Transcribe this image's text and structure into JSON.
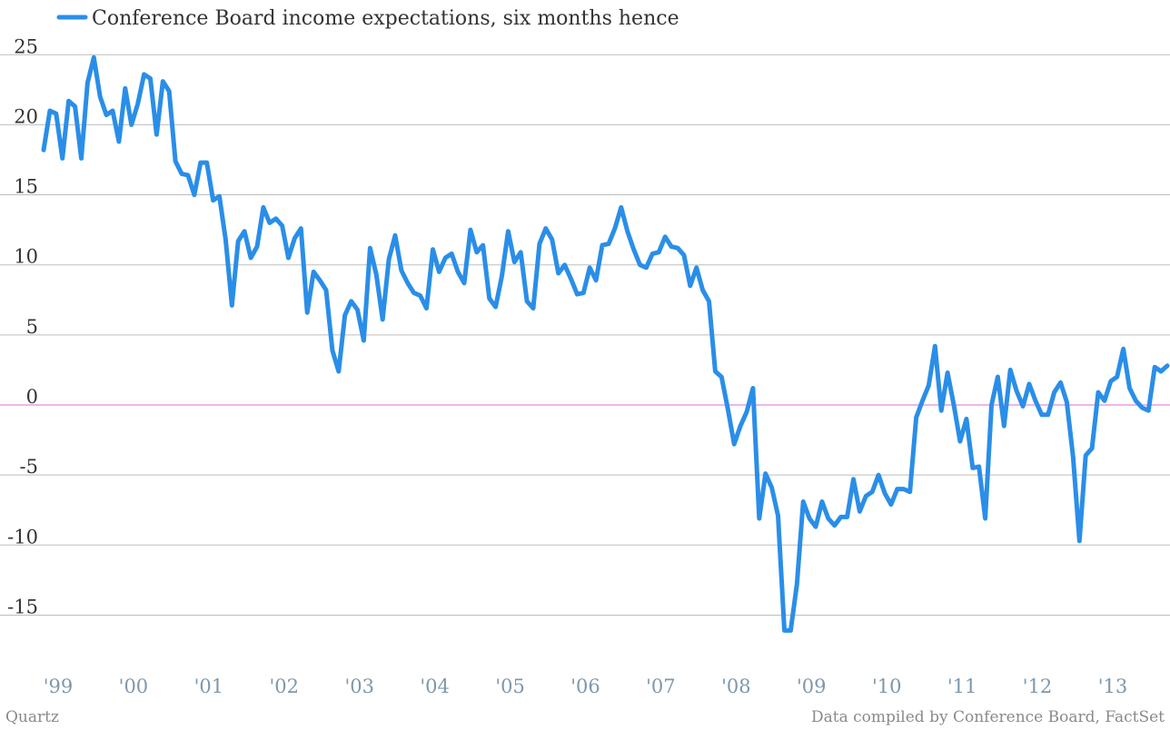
{
  "chart_data": {
    "type": "line",
    "title": "",
    "xlabel": "",
    "ylabel": "",
    "ylim": [
      -19,
      25.5
    ],
    "yticks": [
      25,
      20,
      15,
      10,
      5,
      0,
      -5,
      -10,
      -15
    ],
    "ytick_labels": [
      "25",
      "20",
      "15",
      "10",
      "5",
      "0",
      "-5",
      "-10",
      "-15"
    ],
    "xticks": [
      "'99",
      "'00",
      "'01",
      "'02",
      "'03",
      "'04",
      "'05",
      "'06",
      "'07",
      "'08",
      "'09",
      "'10",
      "'11",
      "'12",
      "'13"
    ],
    "grid": true,
    "zero_line_color": "#d96fd6",
    "legend_position": "top-left",
    "series": [
      {
        "name": "Conference Board income expectations, six months hence",
        "color": "#2a8ee8",
        "start": "1999-01",
        "frequency": "monthly",
        "values": [
          18.2,
          21.0,
          20.8,
          17.6,
          21.7,
          21.3,
          17.6,
          23.0,
          24.8,
          22.0,
          20.7,
          21.0,
          18.8,
          22.6,
          20.0,
          21.5,
          23.6,
          23.3,
          19.3,
          23.1,
          22.4,
          17.4,
          16.5,
          16.4,
          15.0,
          17.3,
          17.3,
          14.6,
          14.9,
          11.8,
          7.1,
          11.7,
          12.4,
          10.5,
          11.3,
          14.1,
          13.0,
          13.3,
          12.8,
          10.5,
          11.9,
          12.6,
          6.6,
          9.5,
          8.9,
          8.2,
          3.9,
          2.4,
          6.4,
          7.4,
          6.8,
          4.6,
          11.2,
          9.3,
          6.1,
          10.4,
          12.1,
          9.6,
          8.7,
          8.0,
          7.8,
          6.9,
          11.1,
          9.5,
          10.5,
          10.8,
          9.5,
          8.7,
          12.5,
          10.9,
          11.4,
          7.6,
          7.0,
          9.2,
          12.4,
          10.2,
          10.9,
          7.4,
          6.9,
          11.5,
          12.6,
          11.8,
          9.4,
          10.0,
          9.0,
          7.9,
          8.0,
          9.8,
          8.9,
          11.4,
          11.5,
          12.6,
          14.1,
          12.4,
          11.1,
          10.0,
          9.8,
          10.8,
          10.9,
          12.0,
          11.3,
          11.2,
          10.7,
          8.5,
          9.8,
          8.2,
          7.4,
          2.4,
          2.0,
          -0.3,
          -2.8,
          -1.5,
          -0.5,
          1.2,
          -8.1,
          -4.9,
          -5.9,
          -7.9,
          -16.1,
          -16.1,
          -12.8,
          -6.9,
          -8.1,
          -8.7,
          -6.9,
          -8.1,
          -8.6,
          -8.0,
          -8.0,
          -5.3,
          -7.6,
          -6.5,
          -6.2,
          -5.0,
          -6.3,
          -7.1,
          -6.0,
          -6.0,
          -6.2,
          -0.9,
          0.3,
          1.4,
          4.2,
          -0.4,
          2.3,
          0.0,
          -2.6,
          -1.0,
          -4.5,
          -4.4,
          -8.1,
          0.0,
          2.0,
          -1.5,
          2.5,
          1.0,
          -0.1,
          1.5,
          0.3,
          -0.7,
          -0.7,
          0.9,
          1.6,
          0.2,
          -3.7,
          -9.7,
          -3.6,
          -3.1,
          0.9,
          0.3,
          1.7,
          2.0,
          4.0,
          1.2,
          0.3,
          -0.2,
          -0.4,
          2.7,
          2.4,
          2.8
        ]
      }
    ]
  },
  "footer": {
    "source_left": "Quartz",
    "source_right": "Data compiled by Conference Board, FactSet"
  }
}
